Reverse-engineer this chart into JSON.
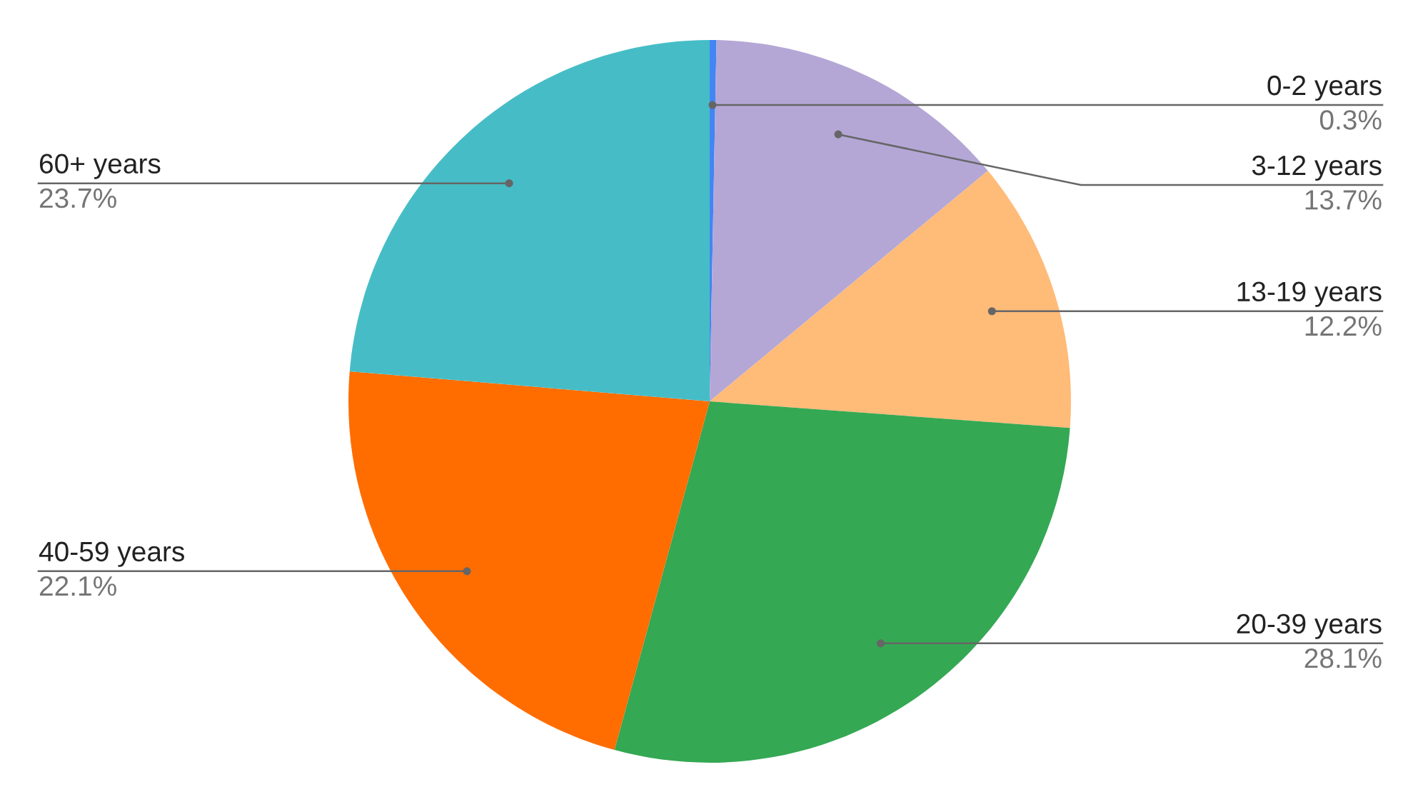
{
  "chart_data": {
    "type": "pie",
    "categories": [
      "0-2 years",
      "3-12 years",
      "13-19 years",
      "20-39 years",
      "40-59 years",
      "60+ years"
    ],
    "values": [
      0.3,
      13.7,
      12.2,
      28.1,
      22.1,
      23.7
    ],
    "value_labels": [
      "0.3%",
      "13.7%",
      "12.2%",
      "28.1%",
      "22.1%",
      "23.7%"
    ],
    "colors": [
      "#4285f4",
      "#b4a7d6",
      "#ffbb78",
      "#34a853",
      "#ff6d00",
      "#46bdc6"
    ]
  }
}
